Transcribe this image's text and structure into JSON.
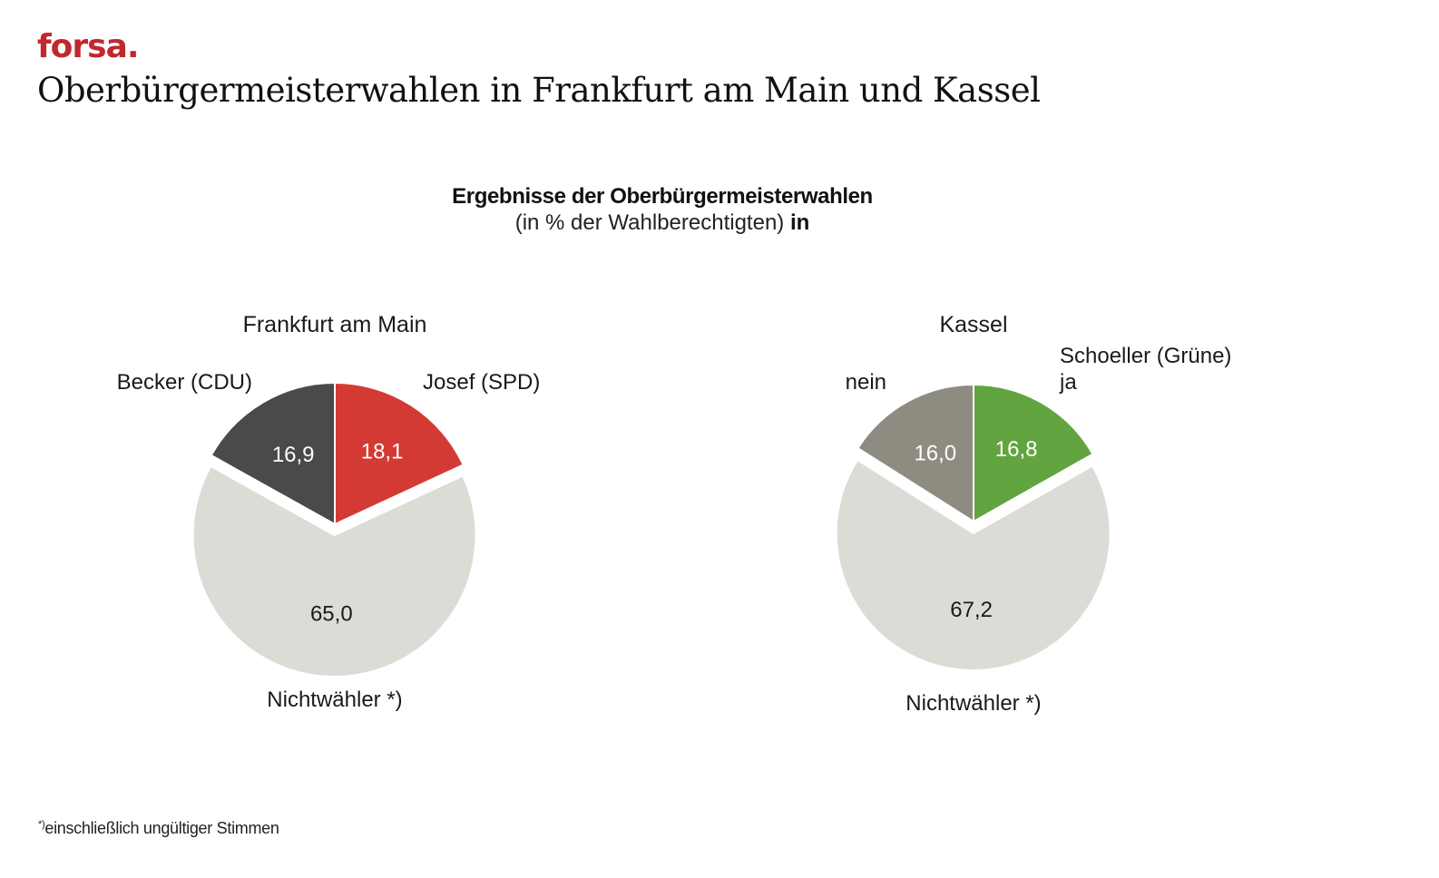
{
  "brand": {
    "logo_text": "forsa.",
    "logo_color": "#c1272d"
  },
  "page_title": "Oberbürgermeisterwahlen in Frankfurt am Main und Kassel",
  "chart_heading": {
    "title": "Ergebnisse der Oberbürgermeisterwahlen",
    "subtitle": "(in % der Wahlberechtigten)",
    "subtitle_suffix": "in"
  },
  "footnote": {
    "marker": "*)",
    "text": "einschließlich ungültiger Stimmen"
  },
  "chart_data": [
    {
      "type": "pie",
      "title": "Frankfurt am Main",
      "slices": [
        {
          "name": "Josef (SPD)",
          "value": 18.1,
          "label": "18,1",
          "color": "#d43a34",
          "label_color": "#ffffff",
          "exploded": false
        },
        {
          "name": "Nichtwähler *)",
          "value": 65.0,
          "label": "65,0",
          "color": "#dcdcd7",
          "label_color": "#1a1a1a",
          "exploded": true
        },
        {
          "name": "Becker (CDU)",
          "value": 16.9,
          "label": "16,9",
          "color": "#4a4a4b",
          "label_color": "#ffffff",
          "exploded": false
        }
      ]
    },
    {
      "type": "pie",
      "title": "Kassel",
      "slices": [
        {
          "name": "Schoeller (Grüne) ja",
          "name_lines": [
            "Schoeller (Grüne)",
            "ja"
          ],
          "value": 16.8,
          "label": "16,8",
          "color": "#62a43f",
          "label_color": "#ffffff",
          "exploded": false
        },
        {
          "name": "Nichtwähler *)",
          "value": 67.2,
          "label": "67,2",
          "color": "#dcdcd7",
          "label_color": "#1a1a1a",
          "exploded": true
        },
        {
          "name": "nein",
          "value": 16.0,
          "label": "16,0",
          "color": "#8e8b80",
          "label_color": "#ffffff",
          "exploded": false
        }
      ]
    }
  ]
}
